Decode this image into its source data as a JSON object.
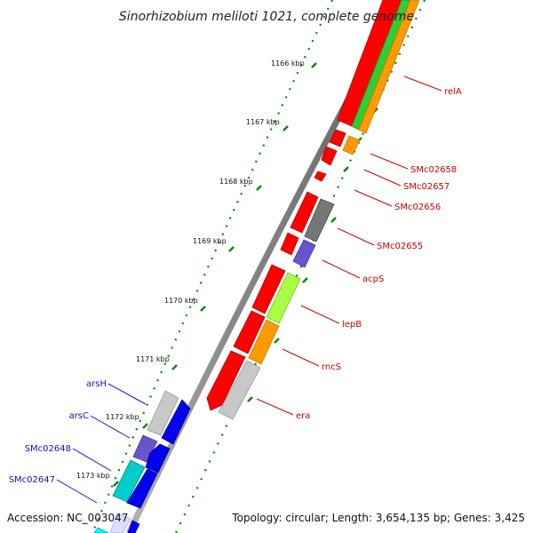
{
  "title": "Sinorhizobium meliloti 1021, complete genome",
  "footer": {
    "accession": "Accession: NC_003047",
    "topology": "Topology: circular; Length: 3,654,135 bp; Genes: 3,425"
  },
  "scale_labels": [
    "1166 kbp",
    "1167 kbp",
    "1168 kbp",
    "1169 kbp",
    "1170 kbp",
    "1171 kbp",
    "1172 kbp",
    "1173 kbp"
  ],
  "right_genes": [
    "relA",
    "SMc02658",
    "SMc02657",
    "SMc02656",
    "SMc02655",
    "acpS",
    "lepB",
    "rncS",
    "era"
  ],
  "left_genes": [
    "arsH",
    "arsC",
    "SMc02648",
    "SMc02647"
  ],
  "colors": {
    "forward": "#ff0000",
    "reverse": "#0000ee",
    "orange": "#ff9900",
    "green": "#33cc33",
    "gray": "#c8c8c8",
    "darkgray": "#777777",
    "purple": "#6655cc",
    "lime": "#aaff44",
    "cyan": "#00cccc",
    "tick": "#008800",
    "right_label": "#cc0000",
    "left_label": "#1010cc"
  }
}
